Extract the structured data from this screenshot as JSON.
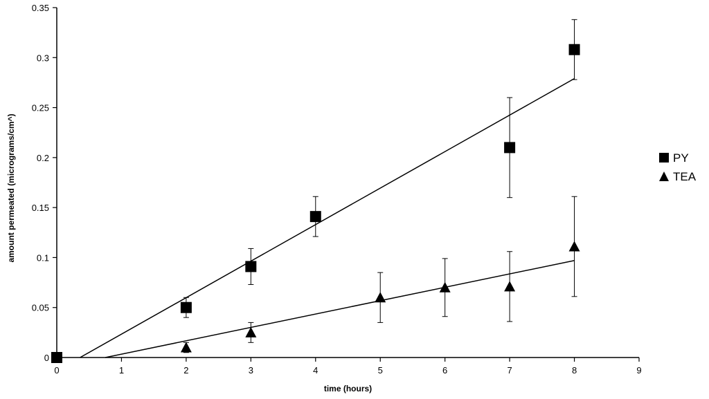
{
  "chart_data": {
    "type": "scatter",
    "xlabel": "time (hours)",
    "ylabel": "amount permeated (micrograms/cm^)",
    "xlim": [
      0,
      9
    ],
    "ylim": [
      0,
      0.35
    ],
    "xticks": [
      "0",
      "1",
      "2",
      "3",
      "4",
      "5",
      "6",
      "7",
      "8",
      "9"
    ],
    "yticks": [
      "0",
      "0.05",
      "0.1",
      "0.15",
      "0.2",
      "0.25",
      "0.3",
      "0.35"
    ],
    "grid": false,
    "legend_position": "right",
    "series": [
      {
        "name": "PY",
        "marker": "square",
        "color": "#000000",
        "points": [
          {
            "x": 0,
            "y": 0
          },
          {
            "x": 2,
            "y": 0.05,
            "err": 0.01
          },
          {
            "x": 3,
            "y": 0.091,
            "err": 0.018
          },
          {
            "x": 4,
            "y": 0.141,
            "err": 0.02
          },
          {
            "x": 7,
            "y": 0.21,
            "err": 0.05
          },
          {
            "x": 8,
            "y": 0.308,
            "err": 0.03
          }
        ],
        "trendline": {
          "x0": 0.36,
          "y0": 0,
          "x1": 8,
          "y1": 0.279
        }
      },
      {
        "name": "TEA",
        "marker": "triangle",
        "color": "#000000",
        "points": [
          {
            "x": 2,
            "y": 0.01,
            "err": 0.005
          },
          {
            "x": 3,
            "y": 0.025,
            "err": 0.01
          },
          {
            "x": 5,
            "y": 0.06,
            "err": 0.025
          },
          {
            "x": 6,
            "y": 0.07,
            "err": 0.029
          },
          {
            "x": 7,
            "y": 0.071,
            "err": 0.035
          },
          {
            "x": 8,
            "y": 0.111,
            "err": 0.05
          }
        ],
        "trendline": {
          "x0": 0.75,
          "y0": 0,
          "x1": 8,
          "y1": 0.097
        }
      }
    ]
  }
}
